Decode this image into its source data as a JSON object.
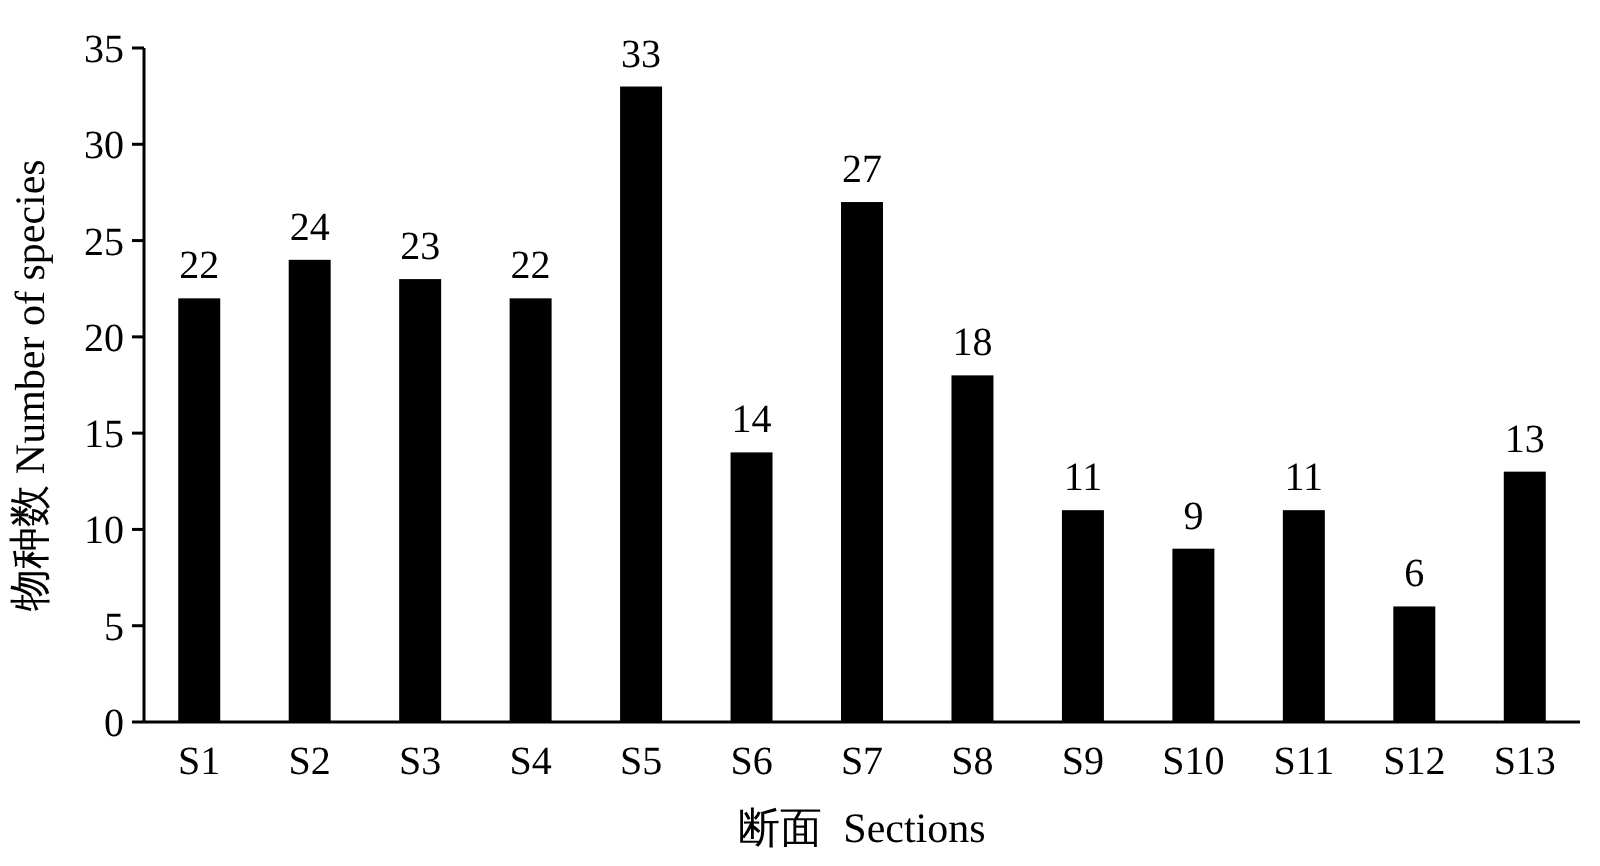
{
  "chart_data": {
    "type": "bar",
    "xlabel": "断面  Sections",
    "ylabel": "物种数 Number of species",
    "categories": [
      "S1",
      "S2",
      "S3",
      "S4",
      "S5",
      "S6",
      "S7",
      "S8",
      "S9",
      "S10",
      "S11",
      "S12",
      "S13"
    ],
    "values": [
      22,
      24,
      23,
      22,
      33,
      14,
      27,
      18,
      11,
      9,
      11,
      6,
      13
    ],
    "color": "#000000",
    "ylim": [
      0,
      35
    ],
    "yticks": [
      0,
      5,
      10,
      15,
      20,
      25,
      30,
      35
    ],
    "data_labels": true
  }
}
